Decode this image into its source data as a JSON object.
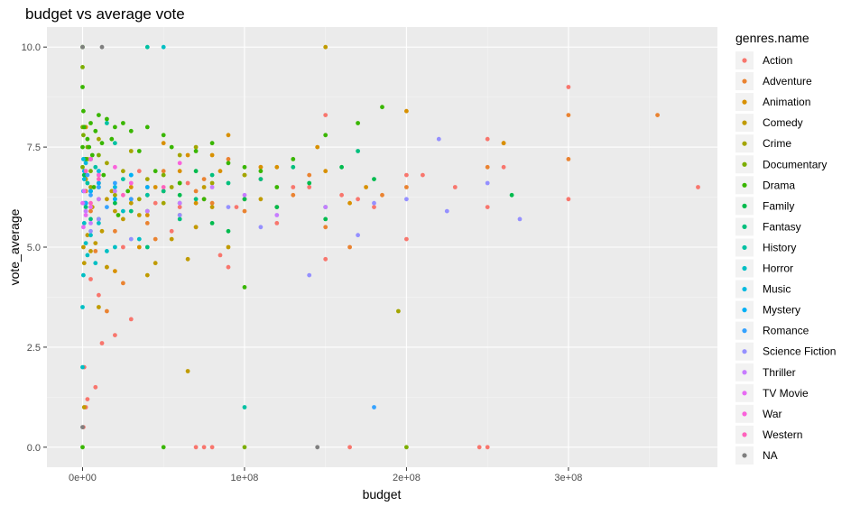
{
  "chart_data": {
    "type": "scatter",
    "title": "budget vs average vote",
    "xlabel": "budget",
    "ylabel": "vote_average",
    "xlim": [
      -22000000,
      392000000
    ],
    "ylim": [
      -0.5,
      10.5
    ],
    "x_ticks": [
      0,
      100000000,
      200000000,
      300000000
    ],
    "x_tick_labels": [
      "0e+00",
      "1e+08",
      "2e+08",
      "3e+08"
    ],
    "y_ticks": [
      0,
      2.5,
      5,
      7.5,
      10
    ],
    "y_tick_labels": [
      "0.0",
      "2.5",
      "5.0",
      "7.5",
      "10.0"
    ],
    "grid": true,
    "legend": {
      "title": "genres.name",
      "position": "right",
      "entries": [
        {
          "name": "Action",
          "color": "#F8766D"
        },
        {
          "name": "Adventure",
          "color": "#EA8331"
        },
        {
          "name": "Animation",
          "color": "#D89000"
        },
        {
          "name": "Comedy",
          "color": "#C09B00"
        },
        {
          "name": "Crime",
          "color": "#A3A500"
        },
        {
          "name": "Documentary",
          "color": "#7CAE00"
        },
        {
          "name": "Drama",
          "color": "#39B600"
        },
        {
          "name": "Family",
          "color": "#00BB4E"
        },
        {
          "name": "Fantasy",
          "color": "#00BF7D"
        },
        {
          "name": "History",
          "color": "#00C1A3"
        },
        {
          "name": "Horror",
          "color": "#00BFC4"
        },
        {
          "name": "Music",
          "color": "#00BAE0"
        },
        {
          "name": "Mystery",
          "color": "#00B0F6"
        },
        {
          "name": "Romance",
          "color": "#35A2FF"
        },
        {
          "name": "Science Fiction",
          "color": "#9590FF"
        },
        {
          "name": "Thriller",
          "color": "#C77CFF"
        },
        {
          "name": "TV Movie",
          "color": "#E76BF3"
        },
        {
          "name": "War",
          "color": "#FA62DB"
        },
        {
          "name": "Western",
          "color": "#FF62BC"
        },
        {
          "name": "NA",
          "color": "#7F7F7F"
        }
      ]
    },
    "series": [
      {
        "name": "Action",
        "x": [
          300000000,
          300000000,
          380000000,
          250000000,
          250000000,
          260000000,
          200000000,
          200000000,
          180000000,
          160000000,
          150000000,
          130000000,
          120000000,
          110000000,
          95000000,
          85000000,
          75000000,
          65000000,
          55000000,
          45000000,
          35000000,
          25000000,
          15000000,
          10000000,
          5000000,
          150000000,
          140000000,
          90000000,
          70000000,
          60000000,
          250000000,
          245000000,
          165000000,
          80000000,
          75000000,
          70000000,
          40000000,
          20000000,
          12000000,
          8000000,
          3000000,
          2000000,
          1000000,
          500000,
          30000000,
          170000000,
          210000000,
          230000000
        ],
        "y": [
          9.0,
          6.2,
          6.5,
          7.7,
          6.0,
          7.0,
          6.8,
          5.2,
          6.0,
          6.3,
          4.7,
          6.5,
          5.6,
          6.7,
          6.0,
          4.8,
          6.2,
          6.6,
          5.4,
          6.1,
          6.9,
          5.0,
          4.5,
          3.8,
          4.2,
          8.3,
          6.5,
          4.5,
          5.5,
          6.0,
          0.0,
          0.0,
          0.0,
          0.0,
          0.0,
          0.0,
          6.5,
          2.8,
          2.6,
          1.5,
          1.2,
          1.0,
          2.0,
          0.5,
          3.2,
          6.2,
          6.8,
          6.5
        ]
      },
      {
        "name": "Adventure",
        "x": [
          355000000,
          300000000,
          300000000,
          260000000,
          250000000,
          200000000,
          185000000,
          150000000,
          140000000,
          120000000,
          100000000,
          90000000,
          80000000,
          70000000,
          60000000,
          50000000,
          40000000,
          30000000,
          20000000,
          10000000,
          5000000,
          165000000,
          130000000,
          110000000,
          75000000,
          45000000,
          25000000,
          15000000,
          8000000,
          2000000
        ],
        "y": [
          8.3,
          8.3,
          7.2,
          7.6,
          7.0,
          6.5,
          6.3,
          5.5,
          6.8,
          6.0,
          5.9,
          7.2,
          6.1,
          6.4,
          5.8,
          6.9,
          5.6,
          6.2,
          5.4,
          6.6,
          5.9,
          5.0,
          6.3,
          7.0,
          6.7,
          5.2,
          4.1,
          3.4,
          4.9,
          6.4
        ]
      },
      {
        "name": "Animation",
        "x": [
          260000000,
          200000000,
          150000000,
          145000000,
          120000000,
          100000000,
          90000000,
          85000000,
          80000000,
          70000000,
          60000000,
          50000000,
          40000000,
          30000000,
          165000000,
          175000000,
          110000000,
          65000000,
          45000000,
          35000000,
          20000000,
          10000000,
          5000000,
          2000000
        ],
        "y": [
          7.6,
          8.4,
          6.9,
          7.5,
          7.0,
          6.2,
          7.8,
          6.9,
          7.3,
          6.1,
          6.9,
          7.6,
          5.8,
          6.5,
          6.1,
          6.5,
          7.0,
          7.3,
          6.5,
          5.0,
          4.4,
          6.2,
          7.2,
          8.0
        ]
      },
      {
        "name": "Comedy",
        "x": [
          150000000,
          80000000,
          75000000,
          70000000,
          65000000,
          60000000,
          55000000,
          50000000,
          45000000,
          40000000,
          35000000,
          30000000,
          25000000,
          20000000,
          18000000,
          15000000,
          12000000,
          10000000,
          8000000,
          6000000,
          5000000,
          3000000,
          2000000,
          1000000,
          500000,
          100000000,
          110000000,
          90000000,
          65000000,
          40000000,
          15000000,
          10000000,
          1000000
        ],
        "y": [
          10.0,
          6.0,
          6.5,
          5.5,
          1.9,
          6.6,
          5.2,
          6.4,
          4.6,
          6.3,
          5.8,
          6.1,
          5.7,
          5.9,
          6.4,
          6.2,
          5.4,
          6.8,
          5.1,
          6.0,
          4.9,
          5.3,
          6.7,
          4.6,
          5.0,
          6.8,
          6.2,
          5.0,
          4.7,
          4.3,
          4.5,
          3.5,
          1.0
        ]
      },
      {
        "name": "Crime",
        "x": [
          195000000,
          100000000,
          80000000,
          60000000,
          50000000,
          40000000,
          30000000,
          25000000,
          20000000,
          15000000,
          10000000,
          5000000,
          3000000,
          1000000,
          70000000,
          55000000,
          35000000
        ],
        "y": [
          3.4,
          6.8,
          6.6,
          7.3,
          6.1,
          6.7,
          7.4,
          6.9,
          6.3,
          7.1,
          7.7,
          6.5,
          7.2,
          6.8,
          7.5,
          6.5,
          6.2
        ]
      },
      {
        "name": "Documentary",
        "x": [
          200000000,
          100000000,
          0,
          0,
          0,
          500000,
          1000000,
          2000000,
          3000000,
          5000000,
          10000000,
          50000000
        ],
        "y": [
          0.0,
          0.0,
          9.5,
          8.0,
          7.0,
          7.8,
          7.2,
          6.8,
          7.5,
          6.9,
          7.3,
          6.8
        ]
      },
      {
        "name": "Drama",
        "x": [
          185000000,
          170000000,
          150000000,
          130000000,
          120000000,
          110000000,
          100000000,
          90000000,
          80000000,
          70000000,
          60000000,
          50000000,
          40000000,
          35000000,
          30000000,
          25000000,
          20000000,
          18000000,
          15000000,
          12000000,
          10000000,
          8000000,
          6000000,
          5000000,
          4000000,
          3000000,
          2000000,
          1000000,
          500000,
          0,
          0,
          0,
          100000000,
          75000000,
          55000000,
          45000000,
          28000000,
          22000000,
          13000000,
          7000000,
          50000000,
          0
        ],
        "y": [
          8.5,
          8.1,
          7.8,
          7.2,
          6.5,
          6.9,
          4.0,
          7.1,
          7.6,
          7.4,
          6.6,
          7.8,
          8.0,
          7.4,
          7.9,
          8.1,
          8.0,
          7.7,
          8.2,
          7.6,
          8.3,
          7.9,
          7.3,
          8.1,
          7.5,
          7.7,
          7.2,
          8.0,
          8.4,
          9.0,
          10.0,
          7.5,
          7.0,
          6.2,
          7.5,
          6.9,
          6.4,
          5.8,
          6.8,
          6.5,
          0.0,
          0.0
        ]
      },
      {
        "name": "Family",
        "x": [
          265000000,
          180000000,
          160000000,
          140000000,
          120000000,
          100000000,
          80000000,
          60000000,
          40000000,
          20000000,
          10000000,
          5000000,
          2000000,
          1000000,
          70000000,
          90000000,
          150000000
        ],
        "y": [
          6.3,
          6.7,
          7.0,
          6.6,
          6.0,
          6.2,
          5.6,
          6.3,
          5.9,
          6.1,
          5.7,
          6.4,
          6.1,
          6.8,
          6.9,
          5.4,
          5.7
        ]
      },
      {
        "name": "Fantasy",
        "x": [
          170000000,
          150000000,
          130000000,
          110000000,
          90000000,
          70000000,
          50000000,
          30000000,
          20000000,
          10000000,
          5000000,
          2000000,
          40000000,
          60000000,
          80000000
        ],
        "y": [
          7.4,
          6.0,
          7.0,
          6.7,
          6.6,
          6.2,
          6.4,
          5.9,
          6.2,
          6.5,
          5.7,
          6.0,
          5.0,
          5.7,
          6.8
        ]
      },
      {
        "name": "History",
        "x": [
          100000000,
          60000000,
          40000000,
          20000000,
          10000000,
          5000000,
          40000000,
          25000000,
          15000000,
          8000000,
          3000000
        ],
        "y": [
          1.0,
          6.1,
          10.0,
          7.6,
          6.9,
          7.2,
          6.3,
          6.7,
          8.1,
          7.0,
          6.6
        ]
      },
      {
        "name": "Horror",
        "x": [
          50000000,
          35000000,
          25000000,
          20000000,
          15000000,
          10000000,
          8000000,
          5000000,
          3000000,
          2000000,
          1000000,
          500000,
          0,
          0
        ],
        "y": [
          10.0,
          5.2,
          5.9,
          5.0,
          4.9,
          5.6,
          4.6,
          5.3,
          4.8,
          5.1,
          5.6,
          4.3,
          3.5,
          2.0
        ]
      },
      {
        "name": "Music",
        "x": [
          30000000,
          20000000,
          10000000,
          5000000,
          2000000,
          1000000,
          500000
        ],
        "y": [
          6.8,
          6.5,
          6.9,
          6.4,
          7.1,
          6.7,
          7.2
        ]
      },
      {
        "name": "Mystery",
        "x": [
          40000000,
          30000000,
          20000000,
          10000000,
          5000000,
          2000000,
          1000000
        ],
        "y": [
          6.5,
          6.8,
          6.2,
          6.6,
          6.4,
          6.1,
          6.9
        ]
      },
      {
        "name": "Romance",
        "x": [
          180000000,
          30000000,
          20000000,
          15000000,
          10000000,
          5000000,
          3000000,
          1000000,
          500000
        ],
        "y": [
          1.0,
          6.2,
          6.6,
          6.0,
          6.5,
          6.3,
          6.8,
          6.1,
          6.4
        ]
      },
      {
        "name": "Science Fiction",
        "x": [
          270000000,
          250000000,
          225000000,
          220000000,
          200000000,
          180000000,
          140000000,
          110000000,
          90000000,
          60000000,
          30000000,
          10000000,
          5000000,
          170000000
        ],
        "y": [
          5.7,
          6.6,
          5.9,
          7.7,
          6.2,
          6.1,
          4.3,
          5.5,
          6.0,
          5.8,
          5.2,
          5.7,
          5.4,
          5.3
        ]
      },
      {
        "name": "Thriller",
        "x": [
          150000000,
          120000000,
          100000000,
          80000000,
          60000000,
          40000000,
          20000000,
          10000000,
          5000000,
          2000000
        ],
        "y": [
          6.0,
          5.8,
          6.3,
          6.5,
          6.1,
          5.9,
          6.4,
          6.2,
          5.6,
          5.9
        ]
      },
      {
        "name": "TV Movie",
        "x": [
          5000000,
          2000000,
          1000000,
          500000,
          0
        ],
        "y": [
          6.0,
          5.8,
          6.4,
          5.5,
          6.1
        ]
      },
      {
        "name": "War",
        "x": [
          60000000,
          30000000,
          20000000,
          10000000,
          5000000
        ],
        "y": [
          7.1,
          6.6,
          7.0,
          6.8,
          7.2
        ]
      },
      {
        "name": "Western",
        "x": [
          50000000,
          25000000,
          10000000,
          5000000,
          2000000
        ],
        "y": [
          6.5,
          6.3,
          6.7,
          6.1,
          6.9
        ]
      },
      {
        "name": "NA",
        "x": [
          0,
          0,
          12000000,
          145000000
        ],
        "y": [
          0.5,
          10.0,
          10.0,
          0.0
        ]
      }
    ]
  }
}
